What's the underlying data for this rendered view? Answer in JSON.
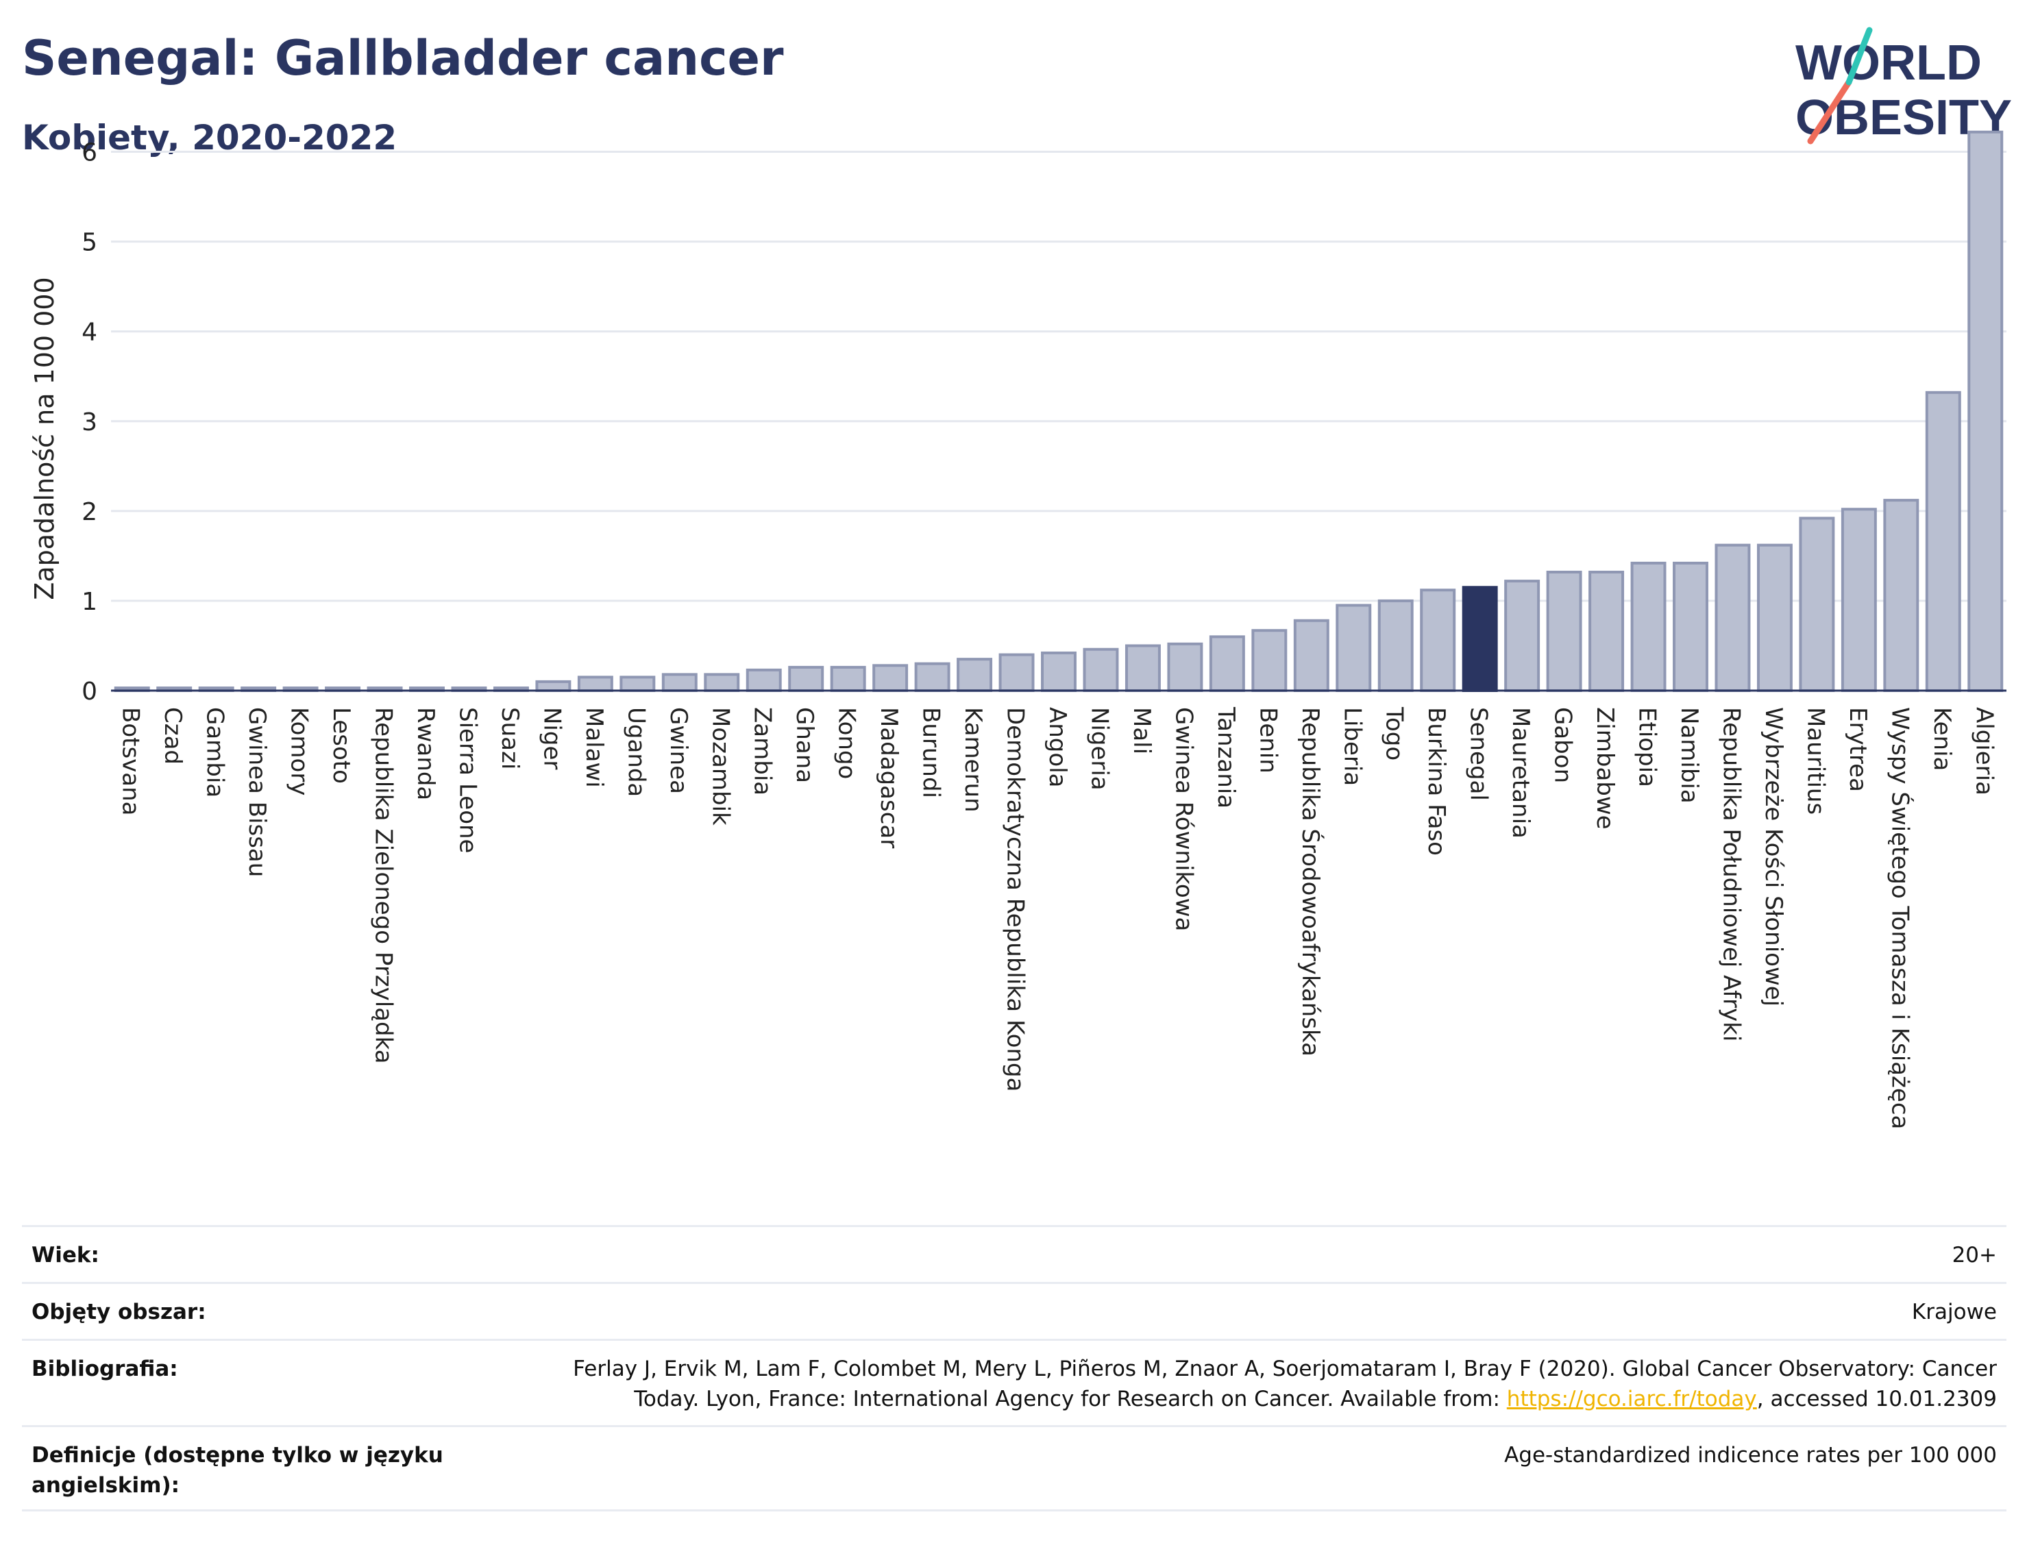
{
  "header": {
    "title": "Senegal: Gallbladder cancer",
    "subtitle": "Kobiety, 2020-2022",
    "logo_line1": "WORLD",
    "logo_line2": "OBESITY"
  },
  "chart_data": {
    "type": "bar",
    "ylabel": "Zapadalność na 100 000",
    "ylim": [
      0,
      6.5
    ],
    "yticks": [
      0,
      1,
      2,
      3,
      4,
      5,
      6
    ],
    "grid": true,
    "highlight": "Senegal",
    "colors": {
      "bar": "#b9bfd1",
      "bar_edge": "#8f97b3",
      "highlight": "#2a3561",
      "grid": "#e4e7ee"
    },
    "categories": [
      "Botsvana",
      "Czad",
      "Gambia",
      "Gwinea Bissau",
      "Komory",
      "Lesoto",
      "Republika Zielonego Przylądka",
      "Rwanda",
      "Sierra Leone",
      "Suazi",
      "Niger",
      "Malawi",
      "Uganda",
      "Gwinea",
      "Mozambik",
      "Zambia",
      "Ghana",
      "Kongo",
      "Madagascar",
      "Burundi",
      "Kamerun",
      "Demokratyczna Republika Konga",
      "Angola",
      "Nigeria",
      "Mali",
      "Gwinea Równikowa",
      "Tanzania",
      "Benin",
      "Republika Środowoafrykańska",
      "Liberia",
      "Togo",
      "Burkina Faso",
      "Senegal",
      "Mauretania",
      "Gabon",
      "Zimbabwe",
      "Etiopia",
      "Namibia",
      "Republika Południowej Afryki",
      "Wybrzeże Kości Słoniowej",
      "Mauritius",
      "Erytrea",
      "Wyspy Świętego Tomasza i Książęca",
      "Kenia",
      "Algieria"
    ],
    "values": [
      0,
      0,
      0,
      0,
      0,
      0,
      0,
      0,
      0,
      0,
      0.1,
      0.15,
      0.15,
      0.18,
      0.18,
      0.23,
      0.26,
      0.26,
      0.28,
      0.3,
      0.35,
      0.4,
      0.42,
      0.46,
      0.5,
      0.52,
      0.6,
      0.67,
      0.78,
      0.95,
      1.0,
      1.12,
      1.15,
      1.22,
      1.32,
      1.32,
      1.42,
      1.42,
      1.62,
      1.62,
      1.92,
      2.02,
      2.12,
      3.32,
      6.22
    ]
  },
  "meta": [
    {
      "label": "Wiek:",
      "value": "20+"
    },
    {
      "label": "Objęty obszar:",
      "value": "Krajowe"
    },
    {
      "label": "Bibliografia:",
      "value_line1": "Ferlay J, Ervik M, Lam F, Colombet M, Mery L, Piñeros M, Znaor A, Soerjomataram I, Bray F (2020). Global Cancer Observatory: Cancer",
      "value_line2_pre": "Today. Lyon, France: International Agency for Research on Cancer. Available from: ",
      "link": "https://gco.iarc.fr/today",
      "value_line2_post": ", accessed 10.01.2309"
    },
    {
      "label": "Definicje (dostępne tylko w języku angielskim):",
      "value": "Age-standardized indicence rates per 100 000"
    }
  ]
}
